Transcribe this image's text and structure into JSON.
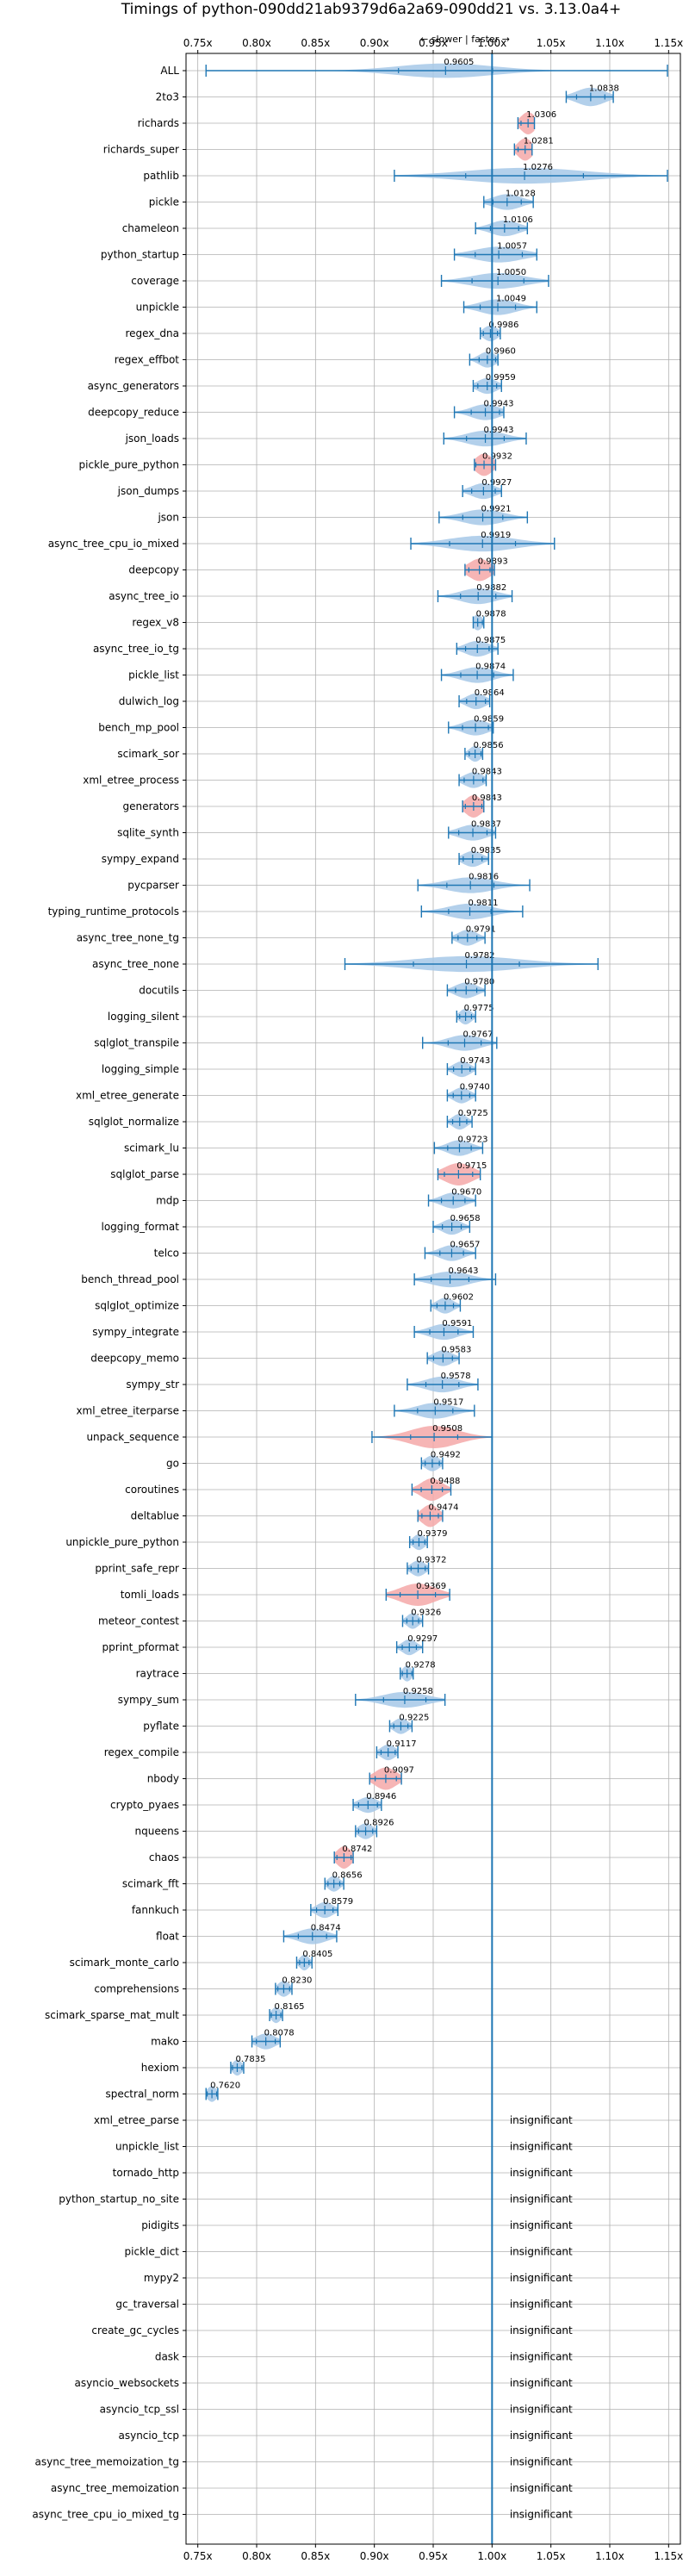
{
  "chart_data": {
    "type": "violin",
    "title": "Timings of python-090dd21ab9379d6a2a69-090dd21 vs. 3.13.0a4+",
    "subtitle": "← slower | faster →",
    "xlim": [
      0.74,
      1.16
    ],
    "xticks": [
      "0.75x",
      "0.80x",
      "0.85x",
      "0.90x",
      "0.95x",
      "1.00x",
      "1.05x",
      "1.10x",
      "1.15x"
    ],
    "xtick_values": [
      0.75,
      0.8,
      0.85,
      0.9,
      0.95,
      1.0,
      1.05,
      1.1,
      1.15
    ],
    "reference_line": 1.0,
    "grid": true,
    "insignificant_text": "insignificant",
    "colors": {
      "significant": "#a6c8e8",
      "notable": "#f4a8a8",
      "lines": "#1f77b4",
      "grid": "#b0b0b0"
    },
    "benchmarks": [
      {
        "name": "ALL",
        "value": 0.9605,
        "label": "0.9605",
        "min": 0.757,
        "max": 1.149,
        "spread": 0.04,
        "height": 0.55,
        "color": "blue"
      },
      {
        "name": "2to3",
        "value": 1.0838,
        "label": "1.0838",
        "min": 1.063,
        "max": 1.103,
        "spread": 0.012,
        "height": 0.7,
        "color": "blue"
      },
      {
        "name": "richards",
        "value": 1.0306,
        "label": "1.0306",
        "min": 1.022,
        "max": 1.036,
        "spread": 0.006,
        "height": 0.85,
        "color": "red"
      },
      {
        "name": "richards_super",
        "value": 1.0281,
        "label": "1.0281",
        "min": 1.019,
        "max": 1.034,
        "spread": 0.006,
        "height": 0.85,
        "color": "red"
      },
      {
        "name": "pathlib",
        "value": 1.0276,
        "label": "1.0276",
        "min": 0.917,
        "max": 1.149,
        "spread": 0.05,
        "height": 0.6,
        "color": "blue"
      },
      {
        "name": "pickle",
        "value": 1.0128,
        "label": "1.0128",
        "min": 0.993,
        "max": 1.035,
        "spread": 0.012,
        "height": 0.6,
        "color": "blue"
      },
      {
        "name": "chameleon",
        "value": 1.0106,
        "label": "1.0106",
        "min": 0.986,
        "max": 1.03,
        "spread": 0.012,
        "height": 0.6,
        "color": "blue"
      },
      {
        "name": "python_startup",
        "value": 1.0057,
        "label": "1.0057",
        "min": 0.968,
        "max": 1.038,
        "spread": 0.02,
        "height": 0.6,
        "color": "blue"
      },
      {
        "name": "coverage",
        "value": 1.005,
        "label": "1.0050",
        "min": 0.957,
        "max": 1.048,
        "spread": 0.022,
        "height": 0.6,
        "color": "blue"
      },
      {
        "name": "unpickle",
        "value": 1.0049,
        "label": "1.0049",
        "min": 0.976,
        "max": 1.038,
        "spread": 0.015,
        "height": 0.6,
        "color": "blue"
      },
      {
        "name": "regex_dna",
        "value": 0.9986,
        "label": "0.9986",
        "min": 0.99,
        "max": 1.007,
        "spread": 0.006,
        "height": 0.6,
        "color": "blue"
      },
      {
        "name": "regex_effbot",
        "value": 0.996,
        "label": "0.9960",
        "min": 0.981,
        "max": 1.005,
        "spread": 0.007,
        "height": 0.6,
        "color": "blue"
      },
      {
        "name": "async_generators",
        "value": 0.9959,
        "label": "0.9959",
        "min": 0.984,
        "max": 1.008,
        "spread": 0.008,
        "height": 0.6,
        "color": "blue"
      },
      {
        "name": "deepcopy_reduce",
        "value": 0.9943,
        "label": "0.9943",
        "min": 0.968,
        "max": 1.01,
        "spread": 0.012,
        "height": 0.6,
        "color": "blue"
      },
      {
        "name": "json_loads",
        "value": 0.9943,
        "label": "0.9943",
        "min": 0.959,
        "max": 1.029,
        "spread": 0.016,
        "height": 0.6,
        "color": "blue"
      },
      {
        "name": "pickle_pure_python",
        "value": 0.9932,
        "label": "0.9932",
        "min": 0.985,
        "max": 1.003,
        "spread": 0.007,
        "height": 0.85,
        "color": "red"
      },
      {
        "name": "json_dumps",
        "value": 0.9927,
        "label": "0.9927",
        "min": 0.975,
        "max": 1.008,
        "spread": 0.01,
        "height": 0.6,
        "color": "blue"
      },
      {
        "name": "json",
        "value": 0.9921,
        "label": "0.9921",
        "min": 0.955,
        "max": 1.03,
        "spread": 0.017,
        "height": 0.6,
        "color": "blue"
      },
      {
        "name": "async_tree_cpu_io_mixed",
        "value": 0.9919,
        "label": "0.9919",
        "min": 0.931,
        "max": 1.053,
        "spread": 0.028,
        "height": 0.6,
        "color": "blue"
      },
      {
        "name": "deepcopy",
        "value": 0.9893,
        "label": "0.9893",
        "min": 0.977,
        "max": 1.002,
        "spread": 0.009,
        "height": 0.85,
        "color": "red"
      },
      {
        "name": "async_tree_io",
        "value": 0.9882,
        "label": "0.9882",
        "min": 0.954,
        "max": 1.017,
        "spread": 0.015,
        "height": 0.6,
        "color": "blue"
      },
      {
        "name": "regex_v8",
        "value": 0.9878,
        "label": "0.9878",
        "min": 0.984,
        "max": 0.993,
        "spread": 0.004,
        "height": 0.6,
        "color": "blue"
      },
      {
        "name": "async_tree_io_tg",
        "value": 0.9875,
        "label": "0.9875",
        "min": 0.97,
        "max": 1.005,
        "spread": 0.01,
        "height": 0.6,
        "color": "blue"
      },
      {
        "name": "pickle_list",
        "value": 0.9874,
        "label": "0.9874",
        "min": 0.957,
        "max": 1.018,
        "spread": 0.014,
        "height": 0.6,
        "color": "blue"
      },
      {
        "name": "dulwich_log",
        "value": 0.9864,
        "label": "0.9864",
        "min": 0.972,
        "max": 0.998,
        "spread": 0.008,
        "height": 0.6,
        "color": "blue"
      },
      {
        "name": "bench_mp_pool",
        "value": 0.9859,
        "label": "0.9859",
        "min": 0.963,
        "max": 1.001,
        "spread": 0.011,
        "height": 0.6,
        "color": "blue"
      },
      {
        "name": "scimark_sor",
        "value": 0.9856,
        "label": "0.9856",
        "min": 0.977,
        "max": 0.992,
        "spread": 0.005,
        "height": 0.6,
        "color": "blue"
      },
      {
        "name": "xml_etree_process",
        "value": 0.9843,
        "label": "0.9843",
        "min": 0.972,
        "max": 0.995,
        "spread": 0.008,
        "height": 0.6,
        "color": "blue"
      },
      {
        "name": "generators",
        "value": 0.9843,
        "label": "0.9843",
        "min": 0.975,
        "max": 0.993,
        "spread": 0.007,
        "height": 0.85,
        "color": "red"
      },
      {
        "name": "sqlite_synth",
        "value": 0.9837,
        "label": "0.9837",
        "min": 0.963,
        "max": 1.003,
        "spread": 0.012,
        "height": 0.6,
        "color": "blue"
      },
      {
        "name": "sympy_expand",
        "value": 0.9835,
        "label": "0.9835",
        "min": 0.972,
        "max": 0.997,
        "spread": 0.008,
        "height": 0.6,
        "color": "blue"
      },
      {
        "name": "pycparser",
        "value": 0.9816,
        "label": "0.9816",
        "min": 0.937,
        "max": 1.032,
        "spread": 0.02,
        "height": 0.6,
        "color": "blue"
      },
      {
        "name": "typing_runtime_protocols",
        "value": 0.9811,
        "label": "0.9811",
        "min": 0.94,
        "max": 1.026,
        "spread": 0.018,
        "height": 0.6,
        "color": "blue"
      },
      {
        "name": "async_tree_none_tg",
        "value": 0.9791,
        "label": "0.9791",
        "min": 0.966,
        "max": 0.994,
        "spread": 0.008,
        "height": 0.6,
        "color": "blue"
      },
      {
        "name": "async_tree_none",
        "value": 0.9782,
        "label": "0.9782",
        "min": 0.875,
        "max": 1.09,
        "spread": 0.045,
        "height": 0.6,
        "color": "blue"
      },
      {
        "name": "docutils",
        "value": 0.978,
        "label": "0.9780",
        "min": 0.962,
        "max": 0.994,
        "spread": 0.009,
        "height": 0.6,
        "color": "blue"
      },
      {
        "name": "logging_silent",
        "value": 0.9775,
        "label": "0.9775",
        "min": 0.97,
        "max": 0.986,
        "spread": 0.005,
        "height": 0.6,
        "color": "blue"
      },
      {
        "name": "sqlglot_transpile",
        "value": 0.9767,
        "label": "0.9767",
        "min": 0.941,
        "max": 1.004,
        "spread": 0.014,
        "height": 0.6,
        "color": "blue"
      },
      {
        "name": "logging_simple",
        "value": 0.9743,
        "label": "0.9743",
        "min": 0.962,
        "max": 0.986,
        "spread": 0.007,
        "height": 0.6,
        "color": "blue"
      },
      {
        "name": "xml_etree_generate",
        "value": 0.974,
        "label": "0.9740",
        "min": 0.962,
        "max": 0.986,
        "spread": 0.007,
        "height": 0.6,
        "color": "blue"
      },
      {
        "name": "sqlglot_normalize",
        "value": 0.9725,
        "label": "0.9725",
        "min": 0.962,
        "max": 0.983,
        "spread": 0.006,
        "height": 0.6,
        "color": "blue"
      },
      {
        "name": "scimark_lu",
        "value": 0.9723,
        "label": "0.9723",
        "min": 0.951,
        "max": 0.992,
        "spread": 0.01,
        "height": 0.6,
        "color": "blue"
      },
      {
        "name": "sqlglot_parse",
        "value": 0.9715,
        "label": "0.9715",
        "min": 0.954,
        "max": 0.99,
        "spread": 0.012,
        "height": 0.85,
        "color": "red"
      },
      {
        "name": "mdp",
        "value": 0.967,
        "label": "0.9670",
        "min": 0.946,
        "max": 0.986,
        "spread": 0.01,
        "height": 0.6,
        "color": "blue"
      },
      {
        "name": "logging_format",
        "value": 0.9658,
        "label": "0.9658",
        "min": 0.95,
        "max": 0.981,
        "spread": 0.008,
        "height": 0.6,
        "color": "blue"
      },
      {
        "name": "telco",
        "value": 0.9657,
        "label": "0.9657",
        "min": 0.943,
        "max": 0.986,
        "spread": 0.01,
        "height": 0.6,
        "color": "blue"
      },
      {
        "name": "bench_thread_pool",
        "value": 0.9643,
        "label": "0.9643",
        "min": 0.934,
        "max": 1.003,
        "spread": 0.016,
        "height": 0.6,
        "color": "blue"
      },
      {
        "name": "sqlglot_optimize",
        "value": 0.9602,
        "label": "0.9602",
        "min": 0.948,
        "max": 0.973,
        "spread": 0.007,
        "height": 0.6,
        "color": "blue"
      },
      {
        "name": "sympy_integrate",
        "value": 0.9591,
        "label": "0.9591",
        "min": 0.934,
        "max": 0.984,
        "spread": 0.012,
        "height": 0.6,
        "color": "blue"
      },
      {
        "name": "deepcopy_memo",
        "value": 0.9583,
        "label": "0.9583",
        "min": 0.945,
        "max": 0.972,
        "spread": 0.008,
        "height": 0.6,
        "color": "blue"
      },
      {
        "name": "sympy_str",
        "value": 0.9578,
        "label": "0.9578",
        "min": 0.928,
        "max": 0.988,
        "spread": 0.014,
        "height": 0.6,
        "color": "blue"
      },
      {
        "name": "xml_etree_iterparse",
        "value": 0.9517,
        "label": "0.9517",
        "min": 0.917,
        "max": 0.985,
        "spread": 0.015,
        "height": 0.6,
        "color": "blue"
      },
      {
        "name": "unpack_sequence",
        "value": 0.9508,
        "label": "0.9508",
        "min": 0.898,
        "max": 1.0,
        "spread": 0.02,
        "height": 0.85,
        "color": "red"
      },
      {
        "name": "go",
        "value": 0.9492,
        "label": "0.9492",
        "min": 0.94,
        "max": 0.958,
        "spread": 0.006,
        "height": 0.6,
        "color": "blue"
      },
      {
        "name": "coroutines",
        "value": 0.9488,
        "label": "0.9488",
        "min": 0.932,
        "max": 0.965,
        "spread": 0.009,
        "height": 0.85,
        "color": "red"
      },
      {
        "name": "deltablue",
        "value": 0.9474,
        "label": "0.9474",
        "min": 0.937,
        "max": 0.958,
        "spread": 0.007,
        "height": 0.85,
        "color": "red"
      },
      {
        "name": "unpickle_pure_python",
        "value": 0.9379,
        "label": "0.9379",
        "min": 0.93,
        "max": 0.945,
        "spread": 0.005,
        "height": 0.6,
        "color": "blue"
      },
      {
        "name": "pprint_safe_repr",
        "value": 0.9372,
        "label": "0.9372",
        "min": 0.928,
        "max": 0.946,
        "spread": 0.006,
        "height": 0.6,
        "color": "blue"
      },
      {
        "name": "tomli_loads",
        "value": 0.9369,
        "label": "0.9369",
        "min": 0.91,
        "max": 0.964,
        "spread": 0.015,
        "height": 0.85,
        "color": "red"
      },
      {
        "name": "meteor_contest",
        "value": 0.9326,
        "label": "0.9326",
        "min": 0.924,
        "max": 0.941,
        "spread": 0.005,
        "height": 0.6,
        "color": "blue"
      },
      {
        "name": "pprint_pformat",
        "value": 0.9297,
        "label": "0.9297",
        "min": 0.919,
        "max": 0.941,
        "spread": 0.006,
        "height": 0.6,
        "color": "blue"
      },
      {
        "name": "raytrace",
        "value": 0.9278,
        "label": "0.9278",
        "min": 0.922,
        "max": 0.933,
        "spread": 0.004,
        "height": 0.6,
        "color": "blue"
      },
      {
        "name": "sympy_sum",
        "value": 0.9258,
        "label": "0.9258",
        "min": 0.884,
        "max": 0.96,
        "spread": 0.018,
        "height": 0.6,
        "color": "blue"
      },
      {
        "name": "pyflate",
        "value": 0.9225,
        "label": "0.9225",
        "min": 0.913,
        "max": 0.932,
        "spread": 0.006,
        "height": 0.6,
        "color": "blue"
      },
      {
        "name": "regex_compile",
        "value": 0.9117,
        "label": "0.9117",
        "min": 0.902,
        "max": 0.92,
        "spread": 0.006,
        "height": 0.6,
        "color": "blue"
      },
      {
        "name": "nbody",
        "value": 0.9097,
        "label": "0.9097",
        "min": 0.896,
        "max": 0.923,
        "spread": 0.009,
        "height": 0.85,
        "color": "red"
      },
      {
        "name": "crypto_pyaes",
        "value": 0.8946,
        "label": "0.8946",
        "min": 0.882,
        "max": 0.906,
        "spread": 0.008,
        "height": 0.6,
        "color": "blue"
      },
      {
        "name": "nqueens",
        "value": 0.8926,
        "label": "0.8926",
        "min": 0.884,
        "max": 0.902,
        "spread": 0.006,
        "height": 0.6,
        "color": "blue"
      },
      {
        "name": "chaos",
        "value": 0.8742,
        "label": "0.8742",
        "min": 0.866,
        "max": 0.882,
        "spread": 0.006,
        "height": 0.85,
        "color": "red"
      },
      {
        "name": "scimark_fft",
        "value": 0.8656,
        "label": "0.8656",
        "min": 0.858,
        "max": 0.874,
        "spread": 0.005,
        "height": 0.6,
        "color": "blue"
      },
      {
        "name": "fannkuch",
        "value": 0.8579,
        "label": "0.8579",
        "min": 0.846,
        "max": 0.869,
        "spread": 0.007,
        "height": 0.6,
        "color": "blue"
      },
      {
        "name": "float",
        "value": 0.8474,
        "label": "0.8474",
        "min": 0.823,
        "max": 0.868,
        "spread": 0.012,
        "height": 0.6,
        "color": "blue"
      },
      {
        "name": "scimark_monte_carlo",
        "value": 0.8405,
        "label": "0.8405",
        "min": 0.834,
        "max": 0.847,
        "spread": 0.004,
        "height": 0.6,
        "color": "blue"
      },
      {
        "name": "comprehensions",
        "value": 0.823,
        "label": "0.8230",
        "min": 0.816,
        "max": 0.83,
        "spread": 0.005,
        "height": 0.6,
        "color": "blue"
      },
      {
        "name": "scimark_sparse_mat_mult",
        "value": 0.8165,
        "label": "0.8165",
        "min": 0.811,
        "max": 0.822,
        "spread": 0.004,
        "height": 0.6,
        "color": "blue"
      },
      {
        "name": "mako",
        "value": 0.8078,
        "label": "0.8078",
        "min": 0.796,
        "max": 0.82,
        "spread": 0.008,
        "height": 0.6,
        "color": "blue"
      },
      {
        "name": "hexiom",
        "value": 0.7835,
        "label": "0.7835",
        "min": 0.778,
        "max": 0.789,
        "spread": 0.004,
        "height": 0.6,
        "color": "blue"
      },
      {
        "name": "spectral_norm",
        "value": 0.762,
        "label": "0.7620",
        "min": 0.757,
        "max": 0.767,
        "spread": 0.004,
        "height": 0.6,
        "color": "blue"
      },
      {
        "name": "xml_etree_parse",
        "insignificant": true
      },
      {
        "name": "unpickle_list",
        "insignificant": true
      },
      {
        "name": "tornado_http",
        "insignificant": true
      },
      {
        "name": "python_startup_no_site",
        "insignificant": true
      },
      {
        "name": "pidigits",
        "insignificant": true
      },
      {
        "name": "pickle_dict",
        "insignificant": true
      },
      {
        "name": "mypy2",
        "insignificant": true
      },
      {
        "name": "gc_traversal",
        "insignificant": true
      },
      {
        "name": "create_gc_cycles",
        "insignificant": true
      },
      {
        "name": "dask",
        "insignificant": true
      },
      {
        "name": "asyncio_websockets",
        "insignificant": true
      },
      {
        "name": "asyncio_tcp_ssl",
        "insignificant": true
      },
      {
        "name": "asyncio_tcp",
        "insignificant": true
      },
      {
        "name": "async_tree_memoization_tg",
        "insignificant": true
      },
      {
        "name": "async_tree_memoization",
        "insignificant": true
      },
      {
        "name": "async_tree_cpu_io_mixed_tg",
        "insignificant": true
      }
    ]
  }
}
